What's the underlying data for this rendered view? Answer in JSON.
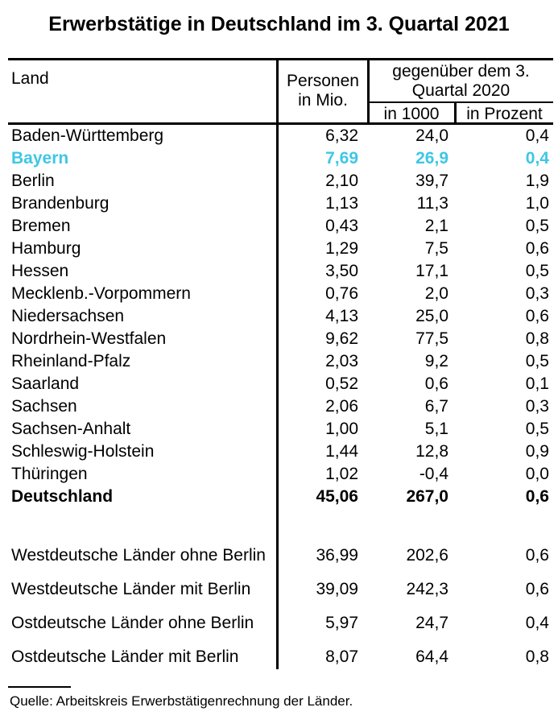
{
  "title": "Erwerbstätige in Deutschland im 3. Quartal 2021",
  "header": {
    "land": "Land",
    "personen_line1": "Personen",
    "personen_line2": "in Mio.",
    "gegenueber_line1": "gegenüber dem 3.",
    "gegenueber_line2": "Quartal 2020",
    "in_1000": "in 1000",
    "in_prozent": "in Prozent"
  },
  "chart_data": {
    "type": "table",
    "title": "Erwerbstätige in Deutschland im 3. Quartal 2021",
    "columns": [
      "Land",
      "Personen in Mio.",
      "gegenüber dem 3. Quartal 2020 in 1000",
      "gegenüber dem 3. Quartal 2020 in Prozent"
    ],
    "rows": [
      {
        "land": "Baden-Württemberg",
        "personen_mio": "6,32",
        "in_1000": "24,0",
        "in_prozent": "0,4",
        "style": ""
      },
      {
        "land": "Bayern",
        "personen_mio": "7,69",
        "in_1000": "26,9",
        "in_prozent": "0,4",
        "style": "highlight"
      },
      {
        "land": "Berlin",
        "personen_mio": "2,10",
        "in_1000": "39,7",
        "in_prozent": "1,9",
        "style": ""
      },
      {
        "land": "Brandenburg",
        "personen_mio": "1,13",
        "in_1000": "11,3",
        "in_prozent": "1,0",
        "style": ""
      },
      {
        "land": "Bremen",
        "personen_mio": "0,43",
        "in_1000": "2,1",
        "in_prozent": "0,5",
        "style": ""
      },
      {
        "land": "Hamburg",
        "personen_mio": "1,29",
        "in_1000": "7,5",
        "in_prozent": "0,6",
        "style": ""
      },
      {
        "land": "Hessen",
        "personen_mio": "3,50",
        "in_1000": "17,1",
        "in_prozent": "0,5",
        "style": ""
      },
      {
        "land": "Mecklenb.-Vorpommern",
        "personen_mio": "0,76",
        "in_1000": "2,0",
        "in_prozent": "0,3",
        "style": ""
      },
      {
        "land": "Niedersachsen",
        "personen_mio": "4,13",
        "in_1000": "25,0",
        "in_prozent": "0,6",
        "style": ""
      },
      {
        "land": "Nordrhein-Westfalen",
        "personen_mio": "9,62",
        "in_1000": "77,5",
        "in_prozent": "0,8",
        "style": ""
      },
      {
        "land": "Rheinland-Pfalz",
        "personen_mio": "2,03",
        "in_1000": "9,2",
        "in_prozent": "0,5",
        "style": ""
      },
      {
        "land": "Saarland",
        "personen_mio": "0,52",
        "in_1000": "0,6",
        "in_prozent": "0,1",
        "style": ""
      },
      {
        "land": "Sachsen",
        "personen_mio": "2,06",
        "in_1000": "6,7",
        "in_prozent": "0,3",
        "style": ""
      },
      {
        "land": "Sachsen-Anhalt",
        "personen_mio": "1,00",
        "in_1000": "5,1",
        "in_prozent": "0,5",
        "style": ""
      },
      {
        "land": "Schleswig-Holstein",
        "personen_mio": "1,44",
        "in_1000": "12,8",
        "in_prozent": "0,9",
        "style": ""
      },
      {
        "land": "Thüringen",
        "personen_mio": "1,02",
        "in_1000": "-0,4",
        "in_prozent": "0,0",
        "style": ""
      },
      {
        "land": "Deutschland",
        "personen_mio": "45,06",
        "in_1000": "267,0",
        "in_prozent": "0,6",
        "style": "bold"
      }
    ],
    "aggregate_rows": [
      {
        "land": "Westdeutsche Länder ohne Berlin",
        "personen_mio": "36,99",
        "in_1000": "202,6",
        "in_prozent": "0,6",
        "style": ""
      },
      {
        "land": "Westdeutsche Länder mit Berlin",
        "personen_mio": "39,09",
        "in_1000": "242,3",
        "in_prozent": "0,6",
        "style": ""
      },
      {
        "land": "Ostdeutsche Länder ohne Berlin",
        "personen_mio": "5,97",
        "in_1000": "24,7",
        "in_prozent": "0,4",
        "style": ""
      },
      {
        "land": "Ostdeutsche Länder mit Berlin",
        "personen_mio": "8,07",
        "in_1000": "64,4",
        "in_prozent": "0,8",
        "style": ""
      }
    ],
    "highlighted_row": "Bayern"
  },
  "source": "Quelle: Arbeitskreis Erwerbstätigenrechnung der Länder.",
  "colors": {
    "highlight_text": "#3EC7E5",
    "rule": "#000000"
  }
}
